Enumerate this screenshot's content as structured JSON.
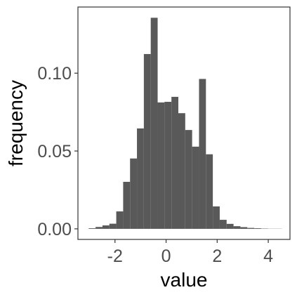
{
  "chart_data": {
    "type": "bar",
    "xlabel": "value",
    "ylabel": "frequency",
    "xlim": [
      -3.45,
      4.85
    ],
    "ylim": [
      -0.0068,
      0.1425
    ],
    "x_ticks": [
      -2,
      0,
      2,
      4
    ],
    "y_ticks": [
      0.0,
      0.05,
      0.1
    ],
    "x_tick_labels": [
      "-2",
      "0",
      "2",
      "4"
    ],
    "y_tick_labels": [
      "0.00",
      "0.05",
      "0.10"
    ],
    "bin_width": 0.27,
    "bins": [
      {
        "x0": -3.03,
        "x1": -2.76,
        "value": 0.0004
      },
      {
        "x0": -2.76,
        "x1": -2.49,
        "value": 0.0012
      },
      {
        "x0": -2.49,
        "x1": -2.22,
        "value": 0.0022
      },
      {
        "x0": -2.22,
        "x1": -1.95,
        "value": 0.0033
      },
      {
        "x0": -1.95,
        "x1": -1.68,
        "value": 0.0112
      },
      {
        "x0": -1.68,
        "x1": -1.41,
        "value": 0.0302
      },
      {
        "x0": -1.41,
        "x1": -1.14,
        "value": 0.0452
      },
      {
        "x0": -1.14,
        "x1": -0.87,
        "value": 0.0645
      },
      {
        "x0": -0.87,
        "x1": -0.6,
        "value": 0.1123
      },
      {
        "x0": -0.6,
        "x1": -0.33,
        "value": 0.1356
      },
      {
        "x0": -0.33,
        "x1": -0.06,
        "value": 0.0812
      },
      {
        "x0": -0.06,
        "x1": 0.21,
        "value": 0.0816
      },
      {
        "x0": 0.21,
        "x1": 0.48,
        "value": 0.0848
      },
      {
        "x0": 0.48,
        "x1": 0.75,
        "value": 0.0743
      },
      {
        "x0": 0.75,
        "x1": 1.02,
        "value": 0.0635
      },
      {
        "x0": 1.02,
        "x1": 1.29,
        "value": 0.0528
      },
      {
        "x0": 1.29,
        "x1": 1.56,
        "value": 0.0963
      },
      {
        "x0": 1.56,
        "x1": 1.83,
        "value": 0.0479
      },
      {
        "x0": 1.83,
        "x1": 2.1,
        "value": 0.0144
      },
      {
        "x0": 2.1,
        "x1": 2.37,
        "value": 0.0058
      },
      {
        "x0": 2.37,
        "x1": 2.64,
        "value": 0.0032
      },
      {
        "x0": 2.64,
        "x1": 2.91,
        "value": 0.0017
      },
      {
        "x0": 2.91,
        "x1": 3.18,
        "value": 0.0011
      },
      {
        "x0": 3.18,
        "x1": 3.45,
        "value": 0.0006
      },
      {
        "x0": 3.45,
        "x1": 3.72,
        "value": 0.0004
      },
      {
        "x0": 3.72,
        "x1": 3.99,
        "value": 0.0002
      },
      {
        "x0": 3.99,
        "x1": 4.26,
        "value": 0.0001
      },
      {
        "x0": 4.26,
        "x1": 4.53,
        "value": 0.0001
      }
    ],
    "grid": false,
    "panel_border": true,
    "colors": {
      "bar_fill": "#595959",
      "panel_border": "#333333",
      "tick_mark": "#333333",
      "tick_label": "#4d4d4d",
      "axis_title": "#000000",
      "background": "#ffffff"
    }
  }
}
